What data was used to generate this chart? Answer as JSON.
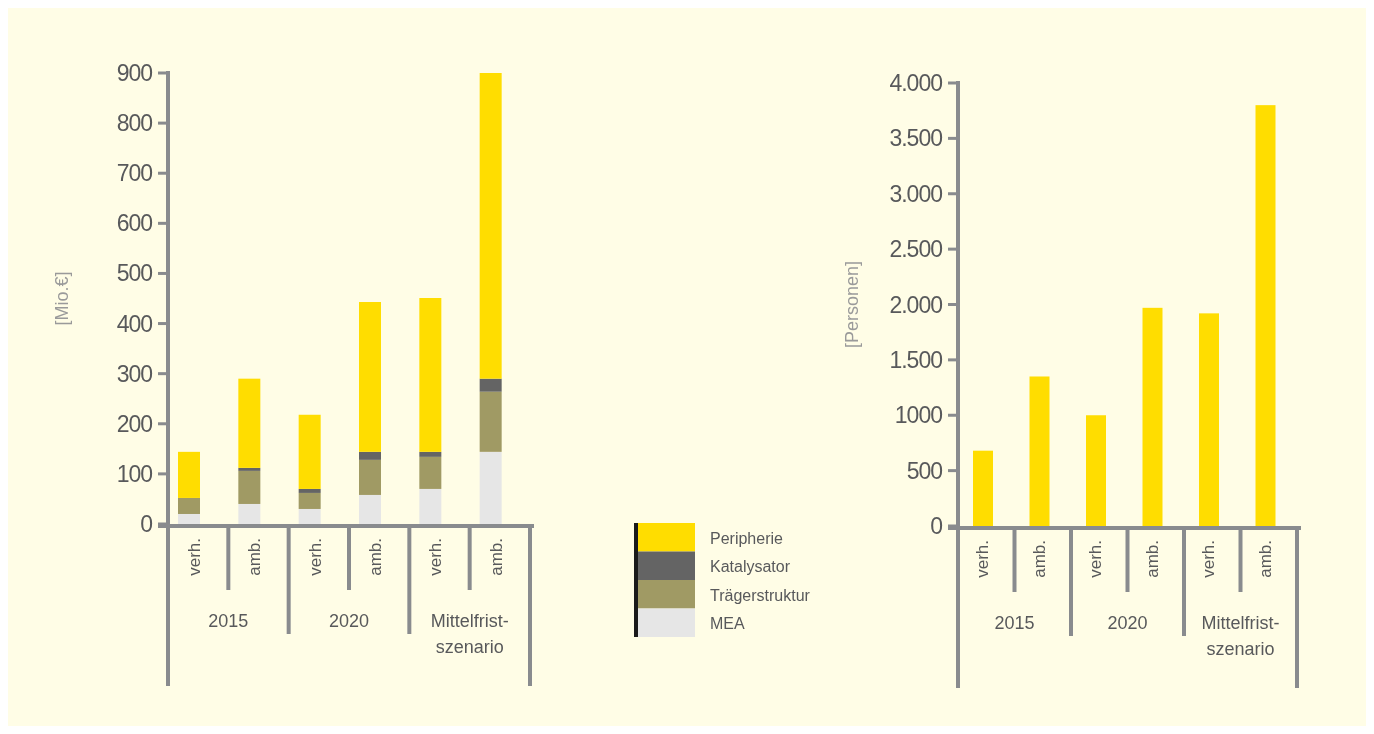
{
  "chart_data": [
    {
      "type": "bar",
      "stacked": true,
      "ylabel": "[Mio.€]",
      "categories": [
        "verh.",
        "amb.",
        "verh.",
        "amb.",
        "verh.",
        "amb."
      ],
      "annotations": [
        "2015",
        "2020",
        "Mittelfrist-szenario"
      ],
      "ylim": [
        0,
        900
      ],
      "yticks": [
        0,
        100,
        200,
        300,
        400,
        500,
        600,
        700,
        800,
        900
      ],
      "legend": "bottom right",
      "series": [
        {
          "name": "MEA",
          "color": "#e6e6e6",
          "values": [
            20,
            40,
            30,
            58,
            70,
            144
          ]
        },
        {
          "name": "Trägerstruktur",
          "color": "#a09a64",
          "values": [
            32,
            66,
            32,
            70,
            64,
            120
          ]
        },
        {
          "name": "Katalysator",
          "color": "#646464",
          "values": [
            0,
            6,
            8,
            16,
            10,
            26
          ]
        },
        {
          "name": "Peripherie",
          "color": "#ffdd00",
          "values": [
            92,
            178,
            148,
            299,
            307,
            610
          ]
        }
      ]
    },
    {
      "type": "bar",
      "ylabel": "[Personen]",
      "categories": [
        "verh.",
        "amb.",
        "verh.",
        "amb.",
        "verh.",
        "amb."
      ],
      "annotations": [
        "2015",
        "2020",
        "Mittelfrist-szenario"
      ],
      "ylim": [
        0,
        4000
      ],
      "yticks": [
        0,
        500,
        1000,
        {
          "value": 1500,
          "label": "1.500"
        },
        {
          "value": 2000,
          "label": "2.000"
        },
        {
          "value": 2500,
          "label": "2.500"
        },
        {
          "value": 3000,
          "label": "3.000"
        },
        {
          "value": 3500,
          "label": "3.500"
        },
        {
          "value": 4000,
          "label": "4.000"
        }
      ],
      "series": [
        {
          "color": "#ffdd00",
          "values": [
            680,
            1350,
            1000,
            1970,
            1920,
            3800
          ]
        }
      ]
    }
  ]
}
